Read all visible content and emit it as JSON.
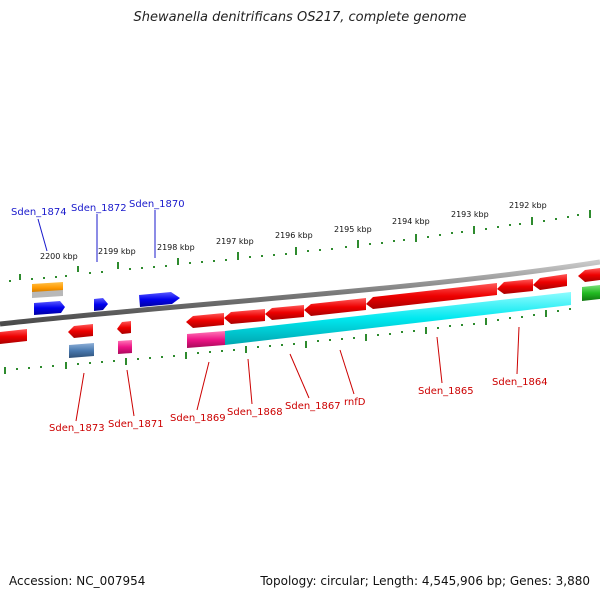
{
  "title": "Shewanella denitrificans OS217, complete genome",
  "footer": {
    "accession": "Accession: NC_007954",
    "summary": "Topology: circular; Length: 4,545,906 bp; Genes: 3,880"
  },
  "colors": {
    "backbone": "#7a7a7a",
    "tick": "#2e8b2e",
    "top_label": "#1a1acc",
    "bottom_label": "#cc0000"
  },
  "scale_labels": [
    "2200 kbp",
    "2199 kbp",
    "2198 kbp",
    "2197 kbp",
    "2196 kbp",
    "2195 kbp",
    "2194 kbp",
    "2193 kbp",
    "2192 kbp"
  ],
  "genes_top": [
    {
      "label": "Sden_1874",
      "color": "#0000ff"
    },
    {
      "label": "Sden_1872",
      "color": "#0000ff"
    },
    {
      "label": "Sden_1870",
      "color": "#0000ff"
    }
  ],
  "genes_bottom": [
    {
      "label": "Sden_1873",
      "color": "#ff0000"
    },
    {
      "label": "Sden_1871",
      "color": "#ff0000"
    },
    {
      "label": "Sden_1869",
      "color": "#ff0000"
    },
    {
      "label": "Sden_1868",
      "color": "#ff0000"
    },
    {
      "label": "Sden_1867",
      "color": "#ff0000"
    },
    {
      "label": "rnfD",
      "color": "#ff0000"
    },
    {
      "label": "Sden_1865",
      "color": "#ff0000"
    },
    {
      "label": "Sden_1864",
      "color": "#ff0000"
    }
  ]
}
